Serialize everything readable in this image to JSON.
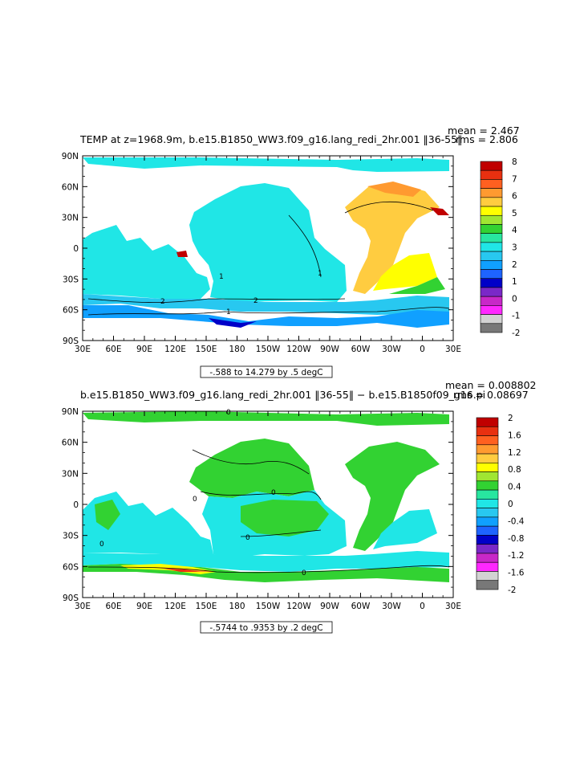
{
  "chart_data": [
    {
      "type": "heatmap",
      "title": "TEMP at z=1968.9m, b.e15.B1850_WW3.f09_g16.lang_redi_2hr.001 ‖36-55‖",
      "mean_label": "mean = 2.467",
      "rms_label": "rms = 2.806",
      "range_label": "-.588 to 14.279 by .5 degC",
      "x_ticks": [
        "30E",
        "60E",
        "90E",
        "120E",
        "150E",
        "180",
        "150W",
        "120W",
        "90W",
        "60W",
        "30W",
        "0",
        "30E"
      ],
      "y_ticks": [
        "90N",
        "60N",
        "30N",
        "0",
        "30S",
        "60S",
        "90S"
      ],
      "colorbar_levels": [
        "8",
        "7",
        "6",
        "5",
        "4",
        "3",
        "2",
        "1",
        "0",
        "-1",
        "-2"
      ],
      "colorbar_colors": [
        "#c00000",
        "#e83010",
        "#ff6020",
        "#ff9a30",
        "#ffcc40",
        "#ffff00",
        "#a0e632",
        "#32d232",
        "#28e6a0",
        "#20e6e6",
        "#28c8f0",
        "#10a0ff",
        "#1e64ff",
        "#0000c8",
        "#7a28c8",
        "#c828c8",
        "#ff28ff",
        "#d2d2d2",
        "#787878"
      ],
      "contour_labels": [
        "2",
        "2",
        "1",
        "1",
        "1"
      ]
    },
    {
      "type": "heatmap",
      "title": "b.e15.B1850_WW3.f09_g16.lang_redi_2hr.001 ‖36-55‖ − b.e15.B1850f09_g16.pi",
      "mean_label": "mean = 0.008802",
      "rms_label": "rms = 0.08697",
      "range_label": "-.5744 to .9353 by .2 degC",
      "x_ticks": [
        "30E",
        "60E",
        "90E",
        "120E",
        "150E",
        "180",
        "150W",
        "120W",
        "90W",
        "60W",
        "30W",
        "0",
        "30E"
      ],
      "y_ticks": [
        "90N",
        "60N",
        "30N",
        "0",
        "30S",
        "60S",
        "90S"
      ],
      "colorbar_levels": [
        "2",
        "1.6",
        "1.2",
        "0.8",
        "0.4",
        "0",
        "-0.4",
        "-0.8",
        "-1.2",
        "-1.6",
        "-2"
      ],
      "colorbar_colors": [
        "#c00000",
        "#e83010",
        "#ff6020",
        "#ff9a30",
        "#ffcc40",
        "#ffff00",
        "#a0e632",
        "#32d232",
        "#28e6a0",
        "#20e6e6",
        "#28c8f0",
        "#10a0ff",
        "#1e64ff",
        "#0000c8",
        "#7a28c8",
        "#c828c8",
        "#ff28ff",
        "#d2d2d2",
        "#787878"
      ],
      "contour_labels": [
        "0",
        "0",
        "0",
        "0",
        "0",
        "0"
      ]
    }
  ]
}
